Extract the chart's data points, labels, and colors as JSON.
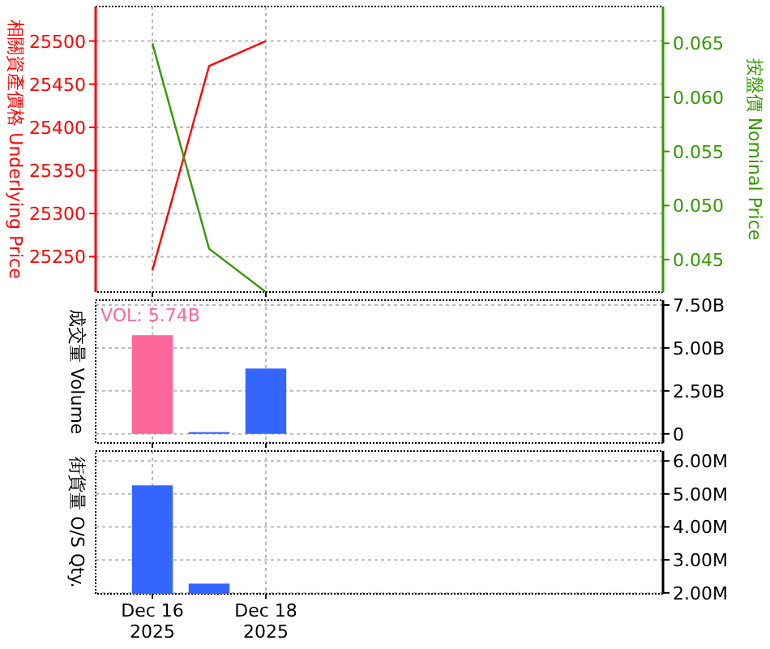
{
  "chart_data": [
    {
      "type": "line",
      "ylabel": "相關資產價格 Underlying Price",
      "y2label": "按盤價 Nominal Price",
      "xlim": [
        "2025-12-15",
        "2025-12-25"
      ],
      "xticks": [
        {
          "value": "2025-12-16",
          "label": null
        },
        {
          "value": "2025-12-18",
          "label": null
        }
      ],
      "ylim": [
        25209,
        25540
      ],
      "yticks": [
        25250,
        25300,
        25350,
        25400,
        25450,
        25500
      ],
      "y2lim": [
        0.042,
        0.0684
      ],
      "y2ticks": [
        0.045,
        {
          "value": 0.05,
          "label": "0.050"
        },
        0.055,
        {
          "value": 0.06,
          "label": "0.060"
        },
        0.065
      ],
      "grid": true,
      "tick_labels": "y",
      "series": [
        {
          "color": "#ff0000",
          "x": [
            "2025-12-16",
            "2025-12-17",
            "2025-12-18"
          ],
          "values": [
            25234,
            25471,
            25500
          ]
        },
        {
          "color": "#339900",
          "axis": "y2",
          "x": [
            "2025-12-16",
            "2025-12-17",
            "2025-12-18"
          ],
          "values": [
            0.065,
            0.046,
            0.042
          ]
        }
      ]
    },
    {
      "type": "bar",
      "ylabel": "成交量 Volume",
      "annotations": [
        "VOL: 5.74B"
      ],
      "xlim": [
        "2025-12-15",
        "2025-12-25"
      ],
      "xticks": [
        {
          "value": "2025-12-16",
          "label": null
        },
        {
          "value": "2025-12-18",
          "label": null
        }
      ],
      "ylim": [
        -0.53,
        7.78
      ],
      "yticks": [
        0,
        {
          "value": 2.5,
          "label": "2.50B"
        },
        {
          "value": 5,
          "label": "5.00B"
        },
        {
          "value": 7.5,
          "label": "7.50B"
        }
      ],
      "grid": true,
      "tick_labels": "y",
      "x": [
        "2025-12-16",
        "2025-12-17",
        "2025-12-18"
      ],
      "values": [
        5.74,
        0.1,
        3.8
      ],
      "colors": [
        "#ff6699",
        "#3366ff",
        "#3366ff"
      ]
    },
    {
      "type": "bar",
      "ylabel": "街貨量 O/S Qty.",
      "xlim": [
        "2025-12-15",
        "2025-12-25"
      ],
      "xticks": [
        {
          "value": "2025-12-16",
          "label": "Dec 16 2025"
        },
        {
          "value": "2025-12-18",
          "label": "Dec 18 2025"
        }
      ],
      "ylim": [
        1.97,
        6.3
      ],
      "yticks": [
        {
          "value": 2,
          "label": "2.00M"
        },
        {
          "value": 3,
          "label": "3.00M"
        },
        {
          "value": 4,
          "label": "4.00M"
        },
        {
          "value": 5,
          "label": "5.00M"
        },
        {
          "value": 6,
          "label": "6.00M"
        }
      ],
      "grid": true,
      "x": [
        "2025-12-16",
        "2025-12-17"
      ],
      "values": [
        5.26,
        2.28
      ],
      "colors": [
        "#3366ff",
        "#3366ff"
      ]
    }
  ]
}
